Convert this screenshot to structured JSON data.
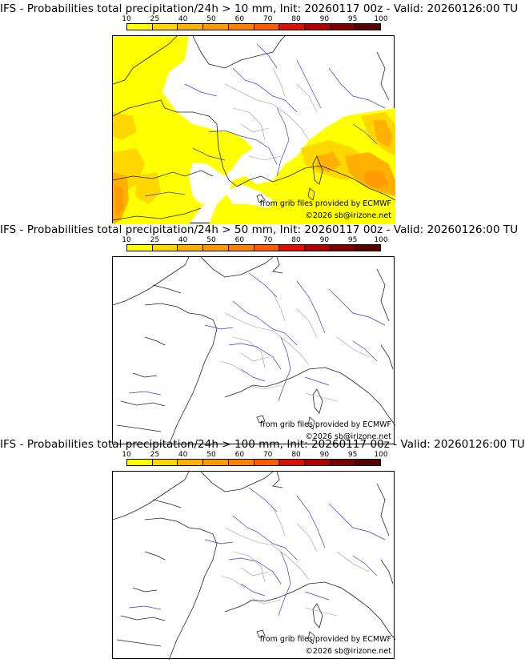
{
  "colorbar": {
    "ticks": [
      "10",
      "25",
      "40",
      "50",
      "60",
      "70",
      "80",
      "90",
      "95",
      "100"
    ],
    "colors": [
      "#ffff00",
      "#ffd700",
      "#ffb000",
      "#ff9a00",
      "#ff7f00",
      "#ff5a00",
      "#e01000",
      "#b00000",
      "#800000",
      "#5a0000"
    ]
  },
  "panels": [
    {
      "title": "IFS - Probabilities total precipitation/24h > 10 mm, Init: 20260117 00z - Valid: 20260126:00 TU",
      "credit_source": "from grib files provided by ECMWF",
      "credit_copyright": "©2026 sb@irizone.net",
      "has_shading": true
    },
    {
      "title": "IFS - Probabilities total precipitation/24h > 50 mm, Init: 20260117 00z - Valid: 20260126:00 TU",
      "credit_source": "from grib files provided by ECMWF",
      "credit_copyright": "©2026 sb@irizone.net",
      "has_shading": false
    },
    {
      "title": "IFS - Probabilities total precipitation/24h > 100 mm, Init: 20260117 00z - Valid: 20260126:00 TU",
      "credit_source": "from grib files provided by ECMWF",
      "credit_copyright": "©2026 sb@irizone.net",
      "has_shading": false
    }
  ]
}
